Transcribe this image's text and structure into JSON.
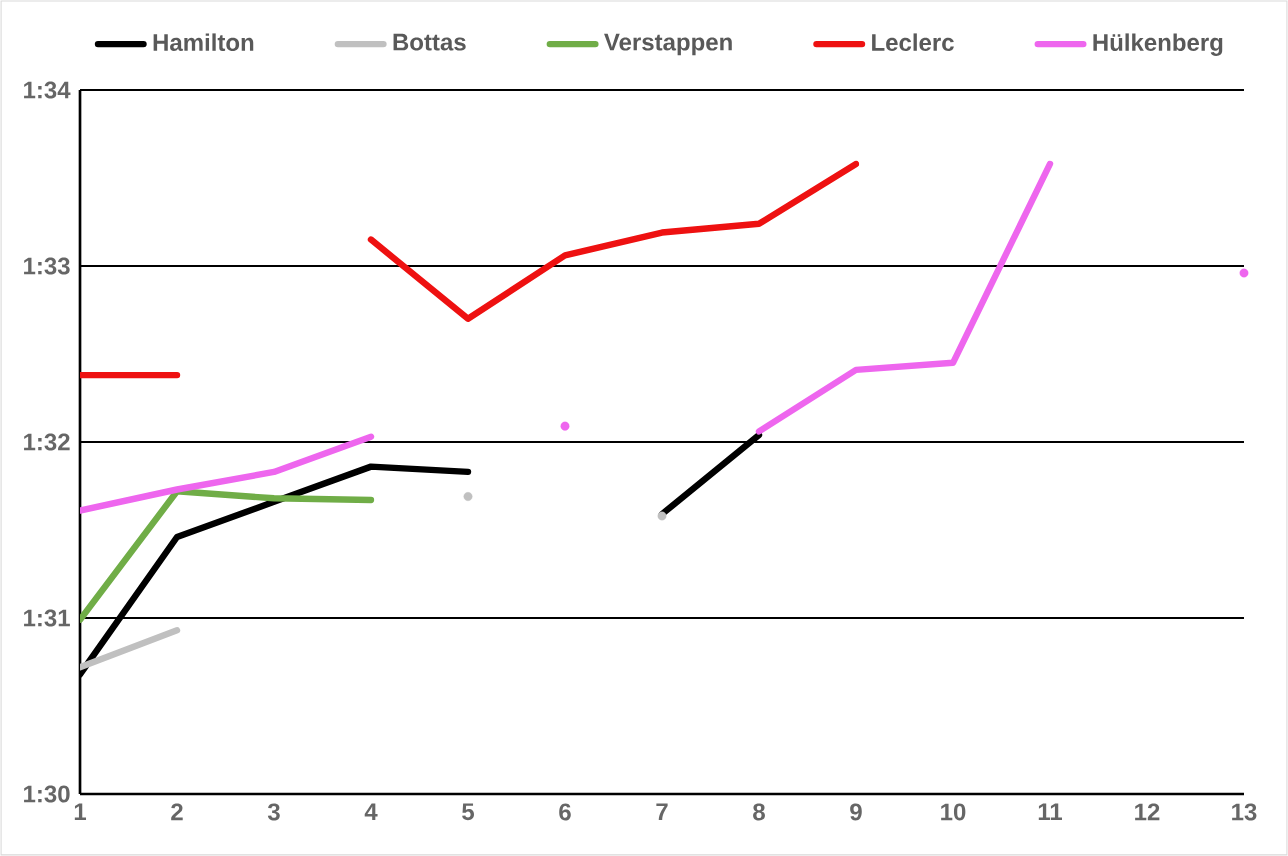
{
  "chart_data": {
    "type": "line",
    "x": [
      1,
      2,
      3,
      4,
      5,
      6,
      7,
      8,
      9,
      10,
      11,
      12,
      13
    ],
    "series": [
      {
        "name": "Hamilton",
        "color": "#000000",
        "values": [
          90.68,
          91.46,
          91.66,
          91.86,
          91.83,
          null,
          91.59,
          92.04,
          null,
          null,
          null,
          null,
          null
        ]
      },
      {
        "name": "Bottas",
        "color": "#c0c0c0",
        "values": [
          90.72,
          90.93,
          null,
          null,
          91.69,
          null,
          91.58,
          null,
          null,
          null,
          null,
          null,
          null
        ]
      },
      {
        "name": "Verstappen",
        "color": "#70ad47",
        "values": [
          90.99,
          91.72,
          91.68,
          91.67,
          null,
          null,
          null,
          null,
          null,
          null,
          null,
          null,
          null
        ]
      },
      {
        "name": "Leclerc",
        "color": "#ee1111",
        "values": [
          92.38,
          92.38,
          null,
          93.15,
          92.7,
          93.06,
          93.19,
          93.24,
          93.58,
          null,
          null,
          null,
          null
        ]
      },
      {
        "name": "Hülkenberg",
        "color": "#ee66ee",
        "values": [
          91.61,
          91.73,
          91.83,
          92.03,
          null,
          92.09,
          null,
          92.06,
          92.41,
          92.45,
          93.58,
          null,
          92.96
        ]
      }
    ],
    "xlim": [
      1,
      13
    ],
    "xticks": [
      1,
      2,
      3,
      4,
      5,
      6,
      7,
      8,
      9,
      10,
      11,
      12,
      13
    ],
    "ylim": [
      90,
      94
    ],
    "yticks": [
      {
        "value": 90,
        "label": "1:30"
      },
      {
        "value": 91,
        "label": "1:31"
      },
      {
        "value": 92,
        "label": "1:32"
      },
      {
        "value": 93,
        "label": "1:33"
      },
      {
        "value": 94,
        "label": "1:34"
      }
    ],
    "grid": "y",
    "legend": "top"
  }
}
